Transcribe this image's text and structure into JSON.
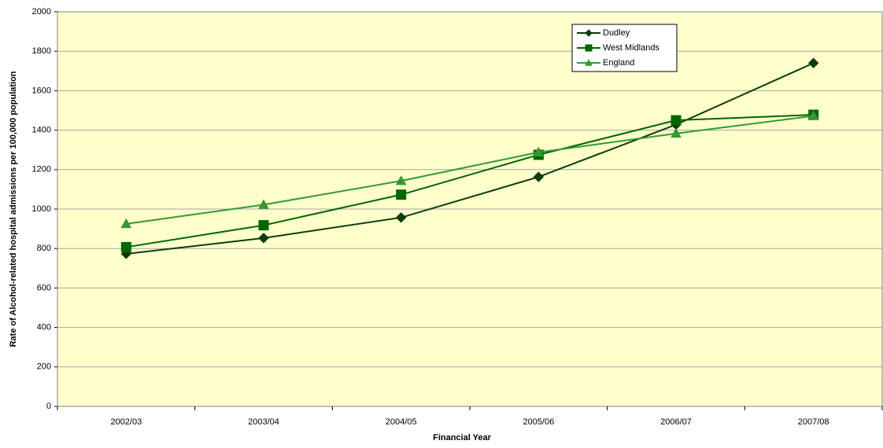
{
  "chart_data": {
    "type": "line",
    "x_label": "Financial Year",
    "y_label": "Rate of Alcohol-related hospital admissions per 100,000 population",
    "categories": [
      "2002/03",
      "2003/04",
      "2004/05",
      "2005/06",
      "2006/07",
      "2007/08"
    ],
    "series": [
      {
        "name": "Dudley",
        "color": "#0b3d0b",
        "marker": "diamond",
        "values": [
          773,
          853,
          957,
          1163,
          1428,
          1740
        ]
      },
      {
        "name": "West Midlands",
        "color": "#006600",
        "marker": "square",
        "values": [
          807,
          918,
          1073,
          1275,
          1450,
          1478
        ]
      },
      {
        "name": "England",
        "color": "#339933",
        "marker": "triangle",
        "values": [
          925,
          1022,
          1143,
          1288,
          1383,
          1472
        ]
      }
    ],
    "ylim": [
      0,
      2000
    ],
    "yticks": [
      0,
      200,
      400,
      600,
      800,
      1000,
      1200,
      1400,
      1600,
      1800,
      2000
    ],
    "grid": true
  }
}
